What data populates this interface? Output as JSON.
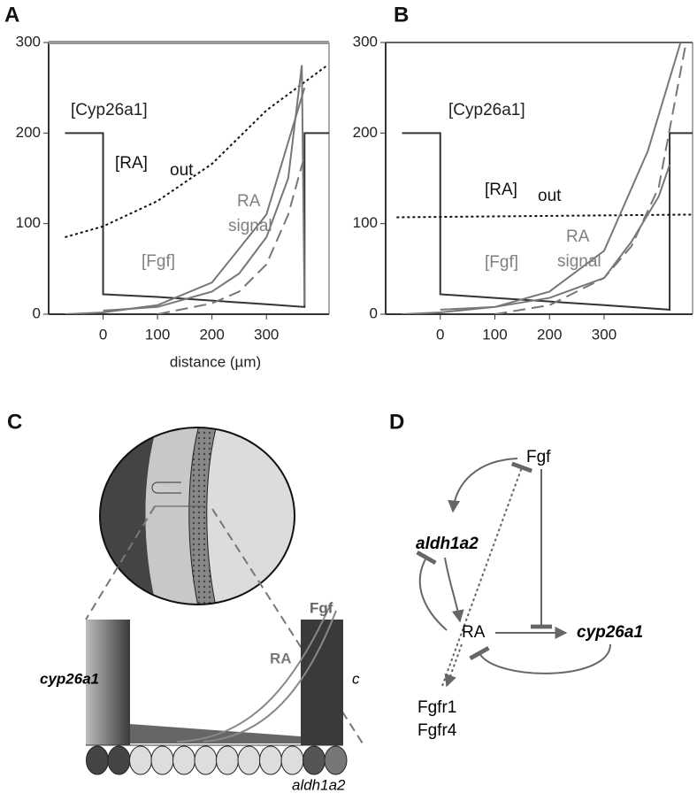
{
  "chart_data": [
    {
      "type": "line",
      "panel": "A",
      "xlabel": "distance (µm)",
      "xlim": [
        -100,
        415
      ],
      "ylim": [
        0,
        300
      ],
      "xticks": [
        0,
        100,
        200,
        300
      ],
      "yticks": [
        0,
        100,
        200,
        300
      ],
      "series": [
        {
          "color": "#333333",
          "dash": "solid",
          "x": [
            -70,
            0,
            0,
            100,
            200,
            300,
            370,
            370,
            415
          ],
          "values": [
            200,
            200,
            22,
            19,
            15,
            11,
            8,
            200,
            200
          ]
        },
        {
          "color": "#111111",
          "dash": "dotted",
          "x": [
            -70,
            0,
            100,
            200,
            300,
            410
          ],
          "values": [
            85,
            97,
            125,
            166,
            225,
            274
          ]
        },
        {
          "color": "#777777",
          "dash": "solid",
          "x": [
            0,
            100,
            200,
            250,
            300,
            340,
            365,
            370
          ],
          "values": [
            4,
            8,
            25,
            45,
            85,
            150,
            275,
            10
          ]
        },
        {
          "color": "#777777",
          "dash": "solid",
          "x": [
            -70,
            0,
            100,
            200,
            300,
            370
          ],
          "values": [
            0,
            2,
            10,
            35,
            110,
            250
          ]
        },
        {
          "color": "#777777",
          "dash": "dashed",
          "x": [
            100,
            200,
            250,
            300,
            340,
            370
          ],
          "values": [
            0,
            12,
            25,
            55,
            110,
            175
          ]
        }
      ],
      "annotations": [
        {
          "text": "[Cyp26a1]",
          "color": "#222222"
        },
        {
          "text": "[RA]",
          "color": "#111111"
        },
        {
          "text": "out",
          "color": "#111111"
        },
        {
          "text": "RA",
          "color": "#808080"
        },
        {
          "text": "signal",
          "color": "#808080"
        },
        {
          "text": "[Fgf]",
          "color": "#808080"
        }
      ]
    },
    {
      "type": "line",
      "panel": "B",
      "xlim": [
        -100,
        462
      ],
      "ylim": [
        0,
        300
      ],
      "xticks": [
        0,
        100,
        200,
        300
      ],
      "yticks": [
        0,
        100,
        200,
        300
      ],
      "series": [
        {
          "color": "#333333",
          "dash": "solid",
          "x": [
            -70,
            0,
            0,
            100,
            200,
            300,
            420,
            420,
            462
          ],
          "values": [
            200,
            200,
            22,
            18,
            14,
            10,
            5,
            200,
            200
          ]
        },
        {
          "color": "#111111",
          "dash": "dotted",
          "x": [
            -80,
            462
          ],
          "values": [
            107,
            110
          ]
        },
        {
          "color": "#777777",
          "dash": "solid",
          "x": [
            0,
            100,
            200,
            300,
            350,
            400,
            420
          ],
          "values": [
            5,
            8,
            18,
            40,
            80,
            130,
            165
          ]
        },
        {
          "color": "#777777",
          "dash": "solid",
          "x": [
            -70,
            0,
            100,
            200,
            300,
            380,
            440
          ],
          "values": [
            0,
            2,
            8,
            25,
            70,
            180,
            300
          ]
        },
        {
          "color": "#777777",
          "dash": "dashed",
          "x": [
            100,
            200,
            300,
            350,
            400,
            450
          ],
          "values": [
            0,
            10,
            40,
            75,
            140,
            300
          ]
        }
      ],
      "annotations": [
        {
          "text": "[Cyp26a1]",
          "color": "#222222"
        },
        {
          "text": "[RA]",
          "color": "#111111"
        },
        {
          "text": "out",
          "color": "#111111"
        },
        {
          "text": "RA",
          "color": "#808080"
        },
        {
          "text": "signal",
          "color": "#808080"
        },
        {
          "text": "[Fgf]",
          "color": "#808080"
        }
      ]
    }
  ],
  "panel_c": {
    "label": "C",
    "cyp26a1": "cyp26a1",
    "fgf": "Fgf",
    "ra": "RA",
    "aldh1a2": "aldh1a2",
    "cut": "c"
  },
  "panel_d": {
    "label": "D",
    "nodes": [
      "Fgf",
      "aldh1a2",
      "RA",
      "cyp26a1",
      "Fgfr1",
      "Fgfr4"
    ]
  }
}
